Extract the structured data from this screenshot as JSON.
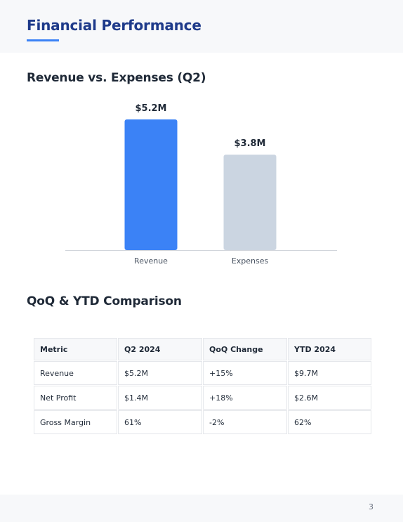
{
  "header": {
    "title": "Financial Performance"
  },
  "chart_section": {
    "title": "Revenue vs. Expenses (Q2)"
  },
  "chart_data": {
    "type": "bar",
    "categories": [
      "Revenue",
      "Expenses"
    ],
    "values": [
      5.2,
      3.8
    ],
    "value_labels": [
      "$5.2M",
      "$3.8M"
    ],
    "colors": [
      "#3b82f6",
      "#cbd5e1"
    ],
    "ylim": [
      0,
      5.2
    ],
    "title": "Revenue vs. Expenses (Q2)",
    "xlabel": "",
    "ylabel": "",
    "grid": false,
    "legend": "none"
  },
  "table_section": {
    "title": "QoQ & YTD Comparison",
    "headers": [
      "Metric",
      "Q2 2024",
      "QoQ Change",
      "YTD 2024"
    ],
    "rows": [
      [
        "Revenue",
        "$5.2M",
        "+15%",
        "$9.7M"
      ],
      [
        "Net Profit",
        "$1.4M",
        "+18%",
        "$2.6M"
      ],
      [
        "Gross Margin",
        "61%",
        "-2%",
        "62%"
      ]
    ]
  },
  "footer": {
    "page_number": "3"
  }
}
